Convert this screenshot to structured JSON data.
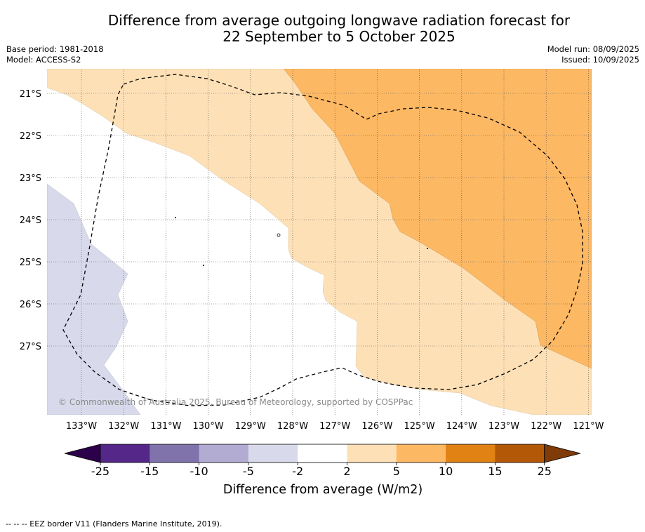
{
  "title_line1": "Difference from average outgoing longwave radiation forecast for",
  "title_line2": "22 September to 5 October 2025",
  "base_period": "Base period: 1981-2018",
  "model": "Model: ACCESS-S2",
  "model_run": "Model run: 08/09/2025",
  "issued": "Issued: 10/09/2025",
  "copyright": "© Commonwealth of Australia 2025, Bureau of Meteorology, supported by COSPPac",
  "lat_labels": [
    "21°S",
    "22°S",
    "23°S",
    "24°S",
    "25°S",
    "26°S",
    "27°S"
  ],
  "lon_labels": [
    "133°W",
    "132°W",
    "131°W",
    "130°W",
    "129°W",
    "128°W",
    "127°W",
    "126°W",
    "125°W",
    "124°W",
    "123°W",
    "122°W",
    "121°W"
  ],
  "colorbar": {
    "label": "Difference from average (W/m2)",
    "ticks": [
      "-25",
      "-15",
      "-10",
      "-5",
      "-2",
      "2",
      "5",
      "10",
      "15",
      "25"
    ],
    "colors": [
      "#542788",
      "#8073ac",
      "#b2abd2",
      "#d8daeb",
      "#ffffff",
      "#fee0b6",
      "#fdb863",
      "#e08214",
      "#b35806"
    ],
    "under_color": "#2d004b",
    "over_color": "#7f3b08"
  },
  "footer": "--  --  -- EEZ border V11 (Flanders Marine Institute, 2019)."
}
